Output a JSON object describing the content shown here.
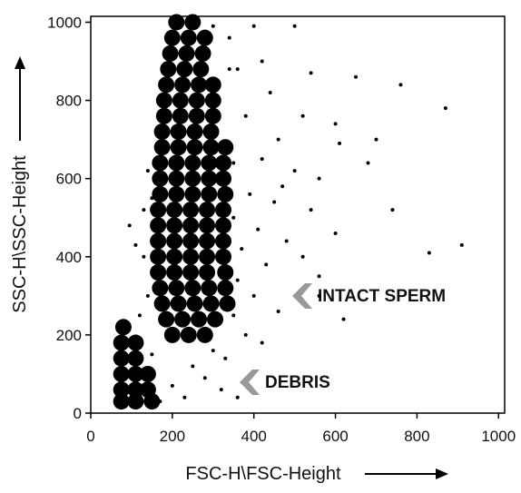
{
  "chart_data": {
    "type": "scatter",
    "xlabel": "FSC-H\\FSC-Height",
    "ylabel": "SSC-H\\SSC-Height",
    "annotations": [
      "INTACT SPERM",
      "DEBRIS"
    ],
    "xlim": [
      0,
      1015
    ],
    "ylim": [
      0,
      1015
    ],
    "xticks": [
      0,
      200,
      400,
      600,
      800,
      1000
    ],
    "yticks": [
      0,
      200,
      400,
      600,
      800,
      1000
    ],
    "series": [
      {
        "color": "#000000",
        "size": 9,
        "x": [
          210,
          250,
          200,
          240,
          280,
          195,
          235,
          275,
          190,
          230,
          270,
          185,
          225,
          265,
          300,
          180,
          220,
          260,
          300,
          180,
          220,
          260,
          300,
          175,
          215,
          255,
          295,
          175,
          215,
          255,
          295,
          330,
          170,
          210,
          250,
          290,
          325,
          170,
          210,
          250,
          290,
          325,
          170,
          210,
          250,
          290,
          330,
          165,
          205,
          245,
          285,
          325,
          165,
          205,
          245,
          285,
          325,
          165,
          205,
          245,
          285,
          325,
          165,
          205,
          245,
          285,
          325,
          165,
          205,
          245,
          285,
          330,
          170,
          210,
          250,
          290,
          330,
          175,
          215,
          255,
          295,
          335,
          185,
          225,
          265,
          305,
          200,
          240,
          280,
          80,
          75,
          110,
          75,
          110,
          75,
          110,
          140,
          75,
          110,
          140,
          75,
          110,
          150
        ],
        "y": [
          1000,
          1000,
          960,
          960,
          960,
          920,
          920,
          920,
          880,
          880,
          880,
          840,
          840,
          840,
          840,
          800,
          800,
          800,
          800,
          760,
          760,
          760,
          760,
          720,
          720,
          720,
          720,
          680,
          680,
          680,
          680,
          680,
          640,
          640,
          640,
          640,
          640,
          600,
          600,
          600,
          600,
          600,
          560,
          560,
          560,
          560,
          560,
          520,
          520,
          520,
          520,
          520,
          480,
          480,
          480,
          480,
          480,
          440,
          440,
          440,
          440,
          440,
          400,
          400,
          400,
          400,
          400,
          360,
          360,
          360,
          360,
          360,
          320,
          320,
          320,
          320,
          320,
          280,
          280,
          280,
          280,
          280,
          240,
          240,
          240,
          240,
          200,
          200,
          200,
          220,
          180,
          180,
          140,
          140,
          100,
          100,
          100,
          60,
          60,
          60,
          30,
          30,
          30
        ]
      },
      {
        "color": "#000000",
        "size": 2,
        "x": [
          340,
          360,
          420,
          500,
          440,
          380,
          520,
          610,
          460,
          350,
          420,
          500,
          560,
          390,
          450,
          540,
          600,
          350,
          410,
          480,
          370,
          430,
          520,
          560,
          360,
          400,
          460,
          350,
          380,
          420,
          300,
          330,
          250,
          280,
          320,
          360,
          230,
          200,
          170,
          150,
          140,
          130,
          110,
          95,
          150,
          140,
          120,
          760,
          870,
          700,
          650,
          740,
          830,
          910,
          600,
          470,
          540,
          400,
          560,
          620,
          680,
          300,
          340,
          130
        ],
        "y": [
          960,
          880,
          900,
          990,
          820,
          760,
          760,
          690,
          700,
          640,
          650,
          620,
          600,
          560,
          540,
          520,
          460,
          500,
          470,
          440,
          420,
          380,
          400,
          350,
          340,
          300,
          260,
          250,
          200,
          180,
          160,
          140,
          120,
          90,
          60,
          40,
          40,
          70,
          30,
          150,
          300,
          400,
          430,
          480,
          550,
          620,
          250,
          840,
          780,
          700,
          860,
          520,
          410,
          430,
          740,
          580,
          870,
          990,
          300,
          240,
          640,
          990,
          880,
          520
        ]
      }
    ]
  }
}
